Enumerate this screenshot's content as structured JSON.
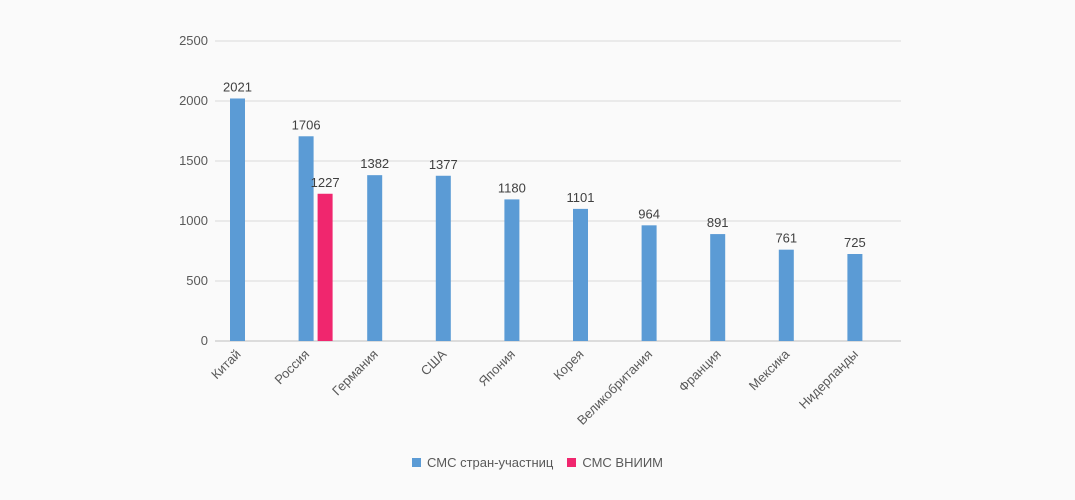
{
  "chart_data": {
    "type": "bar",
    "categories": [
      "Китай",
      "Россия",
      "Германия",
      "США",
      "Япония",
      "Корея",
      "Великобритания",
      "Франция",
      "Мексика",
      "Нидерланды"
    ],
    "series": [
      {
        "name": "СМС стран-участниц",
        "color": "#5b9bd5",
        "values": [
          2021,
          1706,
          1382,
          1377,
          1180,
          1101,
          964,
          891,
          761,
          725
        ]
      },
      {
        "name": "СМС ВНИИМ",
        "color": "#f0266e",
        "values": [
          null,
          1227,
          null,
          null,
          null,
          null,
          null,
          null,
          null,
          null
        ]
      }
    ],
    "ylim": [
      0,
      2500
    ],
    "yticks": [
      0,
      500,
      1000,
      1500,
      2000,
      2500
    ],
    "grid": true,
    "legend_position": "bottom",
    "title": "",
    "xlabel": "",
    "ylabel": ""
  }
}
